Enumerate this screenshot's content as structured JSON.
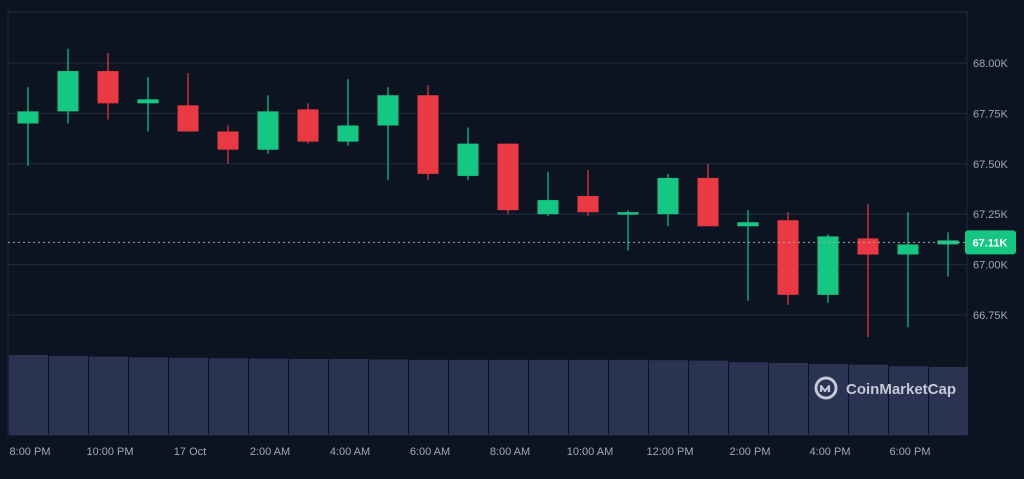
{
  "brand": {
    "name": "CoinMarketCap"
  },
  "colors": {
    "background": "#0d1421",
    "grid": "#222b3d",
    "up": "#16c784",
    "down": "#ea3943",
    "volume": "#2a3352",
    "axis_text": "#a1a7bb"
  },
  "chart_data": {
    "type": "candlestick",
    "x_tick_labels": [
      "8:00 PM",
      "10:00 PM",
      "17 Oct",
      "2:00 AM",
      "4:00 AM",
      "6:00 AM",
      "8:00 AM",
      "10:00 AM",
      "12:00 PM",
      "2:00 PM",
      "4:00 PM",
      "6:00 PM"
    ],
    "y_tick_labels": [
      "68.00K",
      "67.75K",
      "67.50K",
      "67.25K",
      "67.00K",
      "66.75K"
    ],
    "y_ticks": [
      68000,
      67750,
      67500,
      67250,
      67000,
      66750
    ],
    "ylim": [
      66500,
      68250
    ],
    "last_price": 67110,
    "last_price_label": "67.11K",
    "candles": [
      {
        "o": 67700,
        "h": 67880,
        "l": 67490,
        "c": 67760
      },
      {
        "o": 67760,
        "h": 68070,
        "l": 67700,
        "c": 67960
      },
      {
        "o": 67960,
        "h": 68050,
        "l": 67720,
        "c": 67800
      },
      {
        "o": 67800,
        "h": 67930,
        "l": 67660,
        "c": 67820
      },
      {
        "o": 67790,
        "h": 67950,
        "l": 67660,
        "c": 67660
      },
      {
        "o": 67660,
        "h": 67690,
        "l": 67500,
        "c": 67570
      },
      {
        "o": 67570,
        "h": 67840,
        "l": 67550,
        "c": 67760
      },
      {
        "o": 67770,
        "h": 67800,
        "l": 67600,
        "c": 67610
      },
      {
        "o": 67610,
        "h": 67920,
        "l": 67590,
        "c": 67690
      },
      {
        "o": 67690,
        "h": 67880,
        "l": 67420,
        "c": 67840
      },
      {
        "o": 67840,
        "h": 67890,
        "l": 67420,
        "c": 67450
      },
      {
        "o": 67440,
        "h": 67680,
        "l": 67420,
        "c": 67600
      },
      {
        "o": 67600,
        "h": 67600,
        "l": 67250,
        "c": 67270
      },
      {
        "o": 67250,
        "h": 67460,
        "l": 67240,
        "c": 67320
      },
      {
        "o": 67340,
        "h": 67470,
        "l": 67240,
        "c": 67260
      },
      {
        "o": 67250,
        "h": 67270,
        "l": 67070,
        "c": 67260
      },
      {
        "o": 67250,
        "h": 67450,
        "l": 67190,
        "c": 67430
      },
      {
        "o": 67430,
        "h": 67500,
        "l": 67190,
        "c": 67190
      },
      {
        "o": 67190,
        "h": 67270,
        "l": 66820,
        "c": 67210
      },
      {
        "o": 67220,
        "h": 67260,
        "l": 66800,
        "c": 66850
      },
      {
        "o": 66850,
        "h": 67150,
        "l": 66810,
        "c": 67140
      },
      {
        "o": 67130,
        "h": 67300,
        "l": 66640,
        "c": 67050
      },
      {
        "o": 67050,
        "h": 67260,
        "l": 66690,
        "c": 67100
      },
      {
        "o": 67100,
        "h": 67160,
        "l": 66940,
        "c": 67120
      }
    ],
    "volumes": [
      1.0,
      0.99,
      0.98,
      0.97,
      0.965,
      0.96,
      0.955,
      0.95,
      0.95,
      0.945,
      0.94,
      0.94,
      0.94,
      0.94,
      0.94,
      0.94,
      0.935,
      0.93,
      0.91,
      0.9,
      0.89,
      0.88,
      0.86,
      0.85
    ]
  }
}
